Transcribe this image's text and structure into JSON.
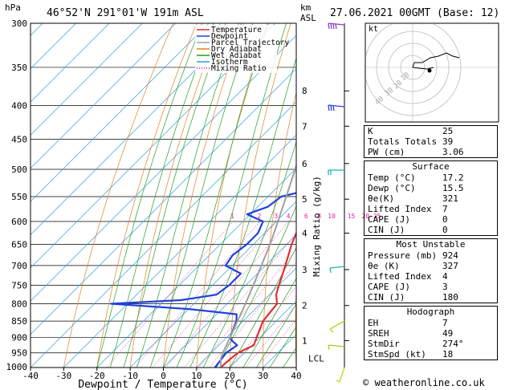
{
  "header": {
    "hpa_unit": "hPa",
    "location": "46°52'N  291°01'W  191m  ASL",
    "km_unit": "km",
    "asl_unit": "ASL",
    "date": "27.06.2021  00GMT  (Base: 12)"
  },
  "legend": [
    {
      "label": "Temperature",
      "color": "#e03030",
      "dash": ""
    },
    {
      "label": "Dewpoint",
      "color": "#2040e0",
      "dash": ""
    },
    {
      "label": "Parcel Trajectory",
      "color": "#a0a0a0",
      "dash": ""
    },
    {
      "label": "Dry Adiabat",
      "color": "#e08020",
      "dash": ""
    },
    {
      "label": "Wet Adiabat",
      "color": "#20a020",
      "dash": ""
    },
    {
      "label": "Isotherm",
      "color": "#30a0e0",
      "dash": ""
    },
    {
      "label": "Mixing Ratio",
      "color": "#e020a0",
      "dash": "1,2"
    }
  ],
  "chart_data": {
    "type": "line",
    "title": "",
    "xlabel": "Dewpoint / Temperature (°C)",
    "ylabel": "hPa",
    "secondary_ylabel": "Mixing Ratio (g/kg)",
    "xlim": [
      -40,
      40
    ],
    "ylim": [
      1000,
      300
    ],
    "skew": "45°",
    "x_ticks": [
      "-40",
      "-30",
      "-20",
      "-10",
      "0",
      "10",
      "20",
      "30",
      "40"
    ],
    "pressure_ticks": [
      "300",
      "350",
      "400",
      "450",
      "500",
      "550",
      "600",
      "650",
      "700",
      "750",
      "800",
      "850",
      "900",
      "950",
      "1000"
    ],
    "km_ticks": [
      {
        "label": "8",
        "p": 380
      },
      {
        "label": "7",
        "p": 430
      },
      {
        "label": "6",
        "p": 490
      },
      {
        "label": "5",
        "p": 555
      },
      {
        "label": "4",
        "p": 625
      },
      {
        "label": "3",
        "p": 710
      },
      {
        "label": "2",
        "p": 805
      },
      {
        "label": "1",
        "p": 910
      }
    ],
    "lcl": {
      "label": "LCL",
      "p": 968
    },
    "mixing_ratio_labels": [
      "1",
      "2",
      "3",
      "4",
      "6",
      "8",
      "10",
      "15",
      "20",
      "25"
    ],
    "mixing_ratio_values": [
      1,
      2,
      3,
      4,
      6,
      8,
      10,
      15,
      20,
      25
    ],
    "series": [
      {
        "name": "Temperature",
        "color": "#e03030",
        "points": [
          {
            "p": 1000,
            "t": 17.2
          },
          {
            "p": 975,
            "t": 17.5
          },
          {
            "p": 950,
            "t": 18.0
          },
          {
            "p": 925,
            "t": 20.5
          },
          {
            "p": 900,
            "t": 19.0
          },
          {
            "p": 850,
            "t": 16.0
          },
          {
            "p": 825,
            "t": 15.5
          },
          {
            "p": 800,
            "t": 15.0
          },
          {
            "p": 775,
            "t": 12.0
          },
          {
            "p": 750,
            "t": 10.0
          },
          {
            "p": 700,
            "t": 6.0
          },
          {
            "p": 650,
            "t": 1.5
          },
          {
            "p": 600,
            "t": -2.5
          },
          {
            "p": 550,
            "t": -7.0
          },
          {
            "p": 530,
            "t": -5.0
          },
          {
            "p": 510,
            "t": -8.0
          },
          {
            "p": 500,
            "t": -9.5
          },
          {
            "p": 450,
            "t": -15.5
          },
          {
            "p": 400,
            "t": -22.0
          },
          {
            "p": 350,
            "t": -30.0
          },
          {
            "p": 300,
            "t": -39.0
          }
        ]
      },
      {
        "name": "Dewpoint",
        "color": "#2040e0",
        "points": [
          {
            "p": 1000,
            "t": 15.5
          },
          {
            "p": 975,
            "t": 15.0
          },
          {
            "p": 950,
            "t": 14.5
          },
          {
            "p": 925,
            "t": 15.5
          },
          {
            "p": 910,
            "t": 12.5
          },
          {
            "p": 900,
            "t": 11.0
          },
          {
            "p": 850,
            "t": 8.0
          },
          {
            "p": 830,
            "t": 6.0
          },
          {
            "p": 815,
            "t": -10.0
          },
          {
            "p": 800,
            "t": -35.0
          },
          {
            "p": 790,
            "t": -15.0
          },
          {
            "p": 775,
            "t": -6.0
          },
          {
            "p": 750,
            "t": -5.0
          },
          {
            "p": 720,
            "t": -5.0
          },
          {
            "p": 700,
            "t": -12.0
          },
          {
            "p": 675,
            "t": -13.0
          },
          {
            "p": 650,
            "t": -12.0
          },
          {
            "p": 625,
            "t": -12.0
          },
          {
            "p": 600,
            "t": -14.0
          },
          {
            "p": 585,
            "t": -21.0
          },
          {
            "p": 570,
            "t": -17.0
          },
          {
            "p": 550,
            "t": -16.0
          },
          {
            "p": 540,
            "t": -11.0
          },
          {
            "p": 520,
            "t": -13.0
          },
          {
            "p": 500,
            "t": -14.0
          },
          {
            "p": 450,
            "t": -20.0
          },
          {
            "p": 400,
            "t": -29.0
          },
          {
            "p": 350,
            "t": -38.0
          },
          {
            "p": 300,
            "t": -48.0
          }
        ]
      },
      {
        "name": "Parcel Trajectory",
        "color": "#a0a0a0",
        "points": [
          {
            "p": 1000,
            "t": 17.2
          },
          {
            "p": 968,
            "t": 14.5
          },
          {
            "p": 950,
            "t": 13.5
          },
          {
            "p": 900,
            "t": 11.0
          },
          {
            "p": 850,
            "t": 8.3
          },
          {
            "p": 800,
            "t": 5.5
          },
          {
            "p": 750,
            "t": 2.3
          },
          {
            "p": 700,
            "t": -1.2
          },
          {
            "p": 650,
            "t": -5.0
          },
          {
            "p": 600,
            "t": -9.5
          },
          {
            "p": 550,
            "t": -14.5
          },
          {
            "p": 500,
            "t": -20.0
          },
          {
            "p": 450,
            "t": -26.5
          },
          {
            "p": 400,
            "t": -34.0
          },
          {
            "p": 350,
            "t": -42.5
          },
          {
            "p": 300,
            "t": -52.0
          }
        ]
      }
    ]
  },
  "hodograph": {
    "unit_label": "kt",
    "ring_labels": [
      "10",
      "20",
      "30",
      "40"
    ]
  },
  "indices": {
    "top": [
      {
        "label": "K",
        "value": "25"
      },
      {
        "label": "Totals Totals",
        "value": "39"
      },
      {
        "label": "PW (cm)",
        "value": "3.06"
      }
    ],
    "surface": {
      "title": "Surface",
      "rows": [
        {
          "label": "Temp (°C)",
          "value": "17.2"
        },
        {
          "label": "Dewp (°C)",
          "value": "15.5"
        },
        {
          "label": "θe(K)",
          "value": "321"
        },
        {
          "label": "Lifted Index",
          "value": "7"
        },
        {
          "label": "CAPE (J)",
          "value": "0"
        },
        {
          "label": "CIN (J)",
          "value": "0"
        }
      ]
    },
    "most_unstable": {
      "title": "Most Unstable",
      "rows": [
        {
          "label": "Pressure (mb)",
          "value": "924"
        },
        {
          "label": "θe (K)",
          "value": "327"
        },
        {
          "label": "Lifted Index",
          "value": "4"
        },
        {
          "label": "CAPE (J)",
          "value": "3"
        },
        {
          "label": "CIN (J)",
          "value": "180"
        }
      ]
    },
    "hodograph_box": {
      "title": "Hodograph",
      "rows": [
        {
          "label": "EH",
          "value": "7"
        },
        {
          "label": "SREH",
          "value": "49"
        },
        {
          "label": "StmDir",
          "value": "274°"
        },
        {
          "label": "StmSpd (kt)",
          "value": "18"
        }
      ]
    }
  },
  "footer": "© weatheronline.co.uk"
}
